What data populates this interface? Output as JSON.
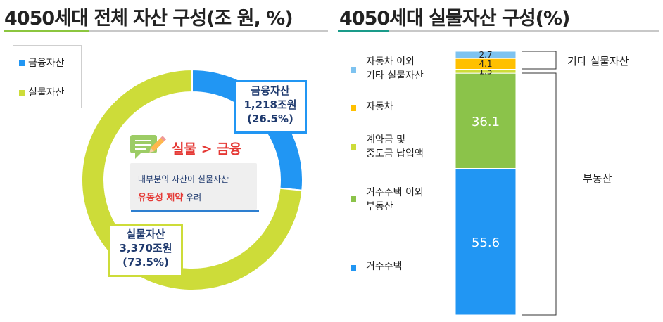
{
  "left": {
    "title": "4050세대 전체 자산 구성(조 원, %)",
    "legend": [
      {
        "label": "금융자산",
        "color": "#2196f3"
      },
      {
        "label": "실물자산",
        "color": "#cddc39"
      }
    ],
    "callout_fin": {
      "name": "금융자산",
      "amount": "1,218조원",
      "pct": "(26.5%)"
    },
    "callout_real": {
      "name": "실물자산",
      "amount": "3,370조원",
      "pct": "(73.5%)"
    },
    "note": {
      "headline": "실물 > 금융",
      "line1": "대부분의 자산이 실물자산",
      "line2_highlight": "유동성 제약",
      "line2_rest": " 우려"
    }
  },
  "right": {
    "title": "4050세대 실물자산 구성(%)",
    "legend": [
      {
        "line1": "자동차 이외",
        "line2": "기타 실물자산",
        "color": "#7ec3f0"
      },
      {
        "line1": "자동차",
        "line2": "",
        "color": "#ffc000"
      },
      {
        "line1": "계약금 및",
        "line2": "중도금 납입액",
        "color": "#cddc39"
      },
      {
        "line1": "거주주택 이외",
        "line2": "부동산",
        "color": "#8bc34a"
      },
      {
        "line1": "거주주택",
        "line2": "",
        "color": "#2196f3"
      }
    ],
    "bracket_other": "기타 실물자산",
    "bracket_realestate": "부동산"
  },
  "colors": {
    "accent_green": "#8cc63f",
    "accent_teal": "#1a9b8a",
    "rule_gray": "#c8c8c8",
    "highlight_red": "#e53935",
    "navy": "#1f3a6e"
  },
  "chart_data": [
    {
      "type": "pie",
      "title": "4050세대 전체 자산 구성(조 원, %)",
      "categories": [
        "금융자산",
        "실물자산"
      ],
      "values": [
        26.5,
        73.5
      ],
      "amounts": [
        "1,218조원",
        "3,370조원"
      ],
      "donut": true
    },
    {
      "type": "bar",
      "stacked": true,
      "title": "4050세대 실물자산 구성(%)",
      "series": [
        {
          "name": "거주주택",
          "values": [
            55.6
          ],
          "label": "55.6",
          "color": "#2196f3"
        },
        {
          "name": "거주주택 이외 부동산",
          "values": [
            36.1
          ],
          "label": "36.1",
          "color": "#8bc34a"
        },
        {
          "name": "계약금 및 중도금 납입액",
          "values": [
            1.5
          ],
          "label": "1.5",
          "color": "#cddc39"
        },
        {
          "name": "자동차",
          "values": [
            4.1
          ],
          "label": "4.1",
          "color": "#ffc000"
        },
        {
          "name": "자동차 이외 기타 실물자산",
          "values": [
            2.7
          ],
          "label": "2.7",
          "color": "#7ec3f0"
        }
      ],
      "ylim": [
        0,
        100
      ]
    }
  ]
}
